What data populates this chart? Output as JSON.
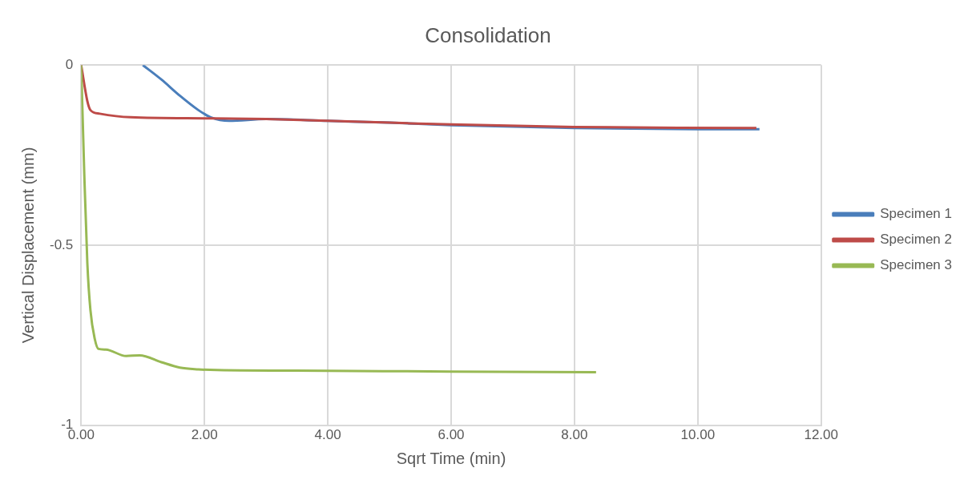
{
  "chart_data": {
    "type": "line",
    "title": "Consolidation",
    "xlabel": "Sqrt Time (min)",
    "ylabel": "Vertical Displacement (mm)",
    "xlim": [
      0,
      12
    ],
    "xticks": [
      {
        "value": 0,
        "label": "0.00"
      },
      {
        "value": 2,
        "label": "2.00"
      },
      {
        "value": 4,
        "label": "4.00"
      },
      {
        "value": 6,
        "label": "6.00"
      },
      {
        "value": 8,
        "label": "8.00"
      },
      {
        "value": 10,
        "label": "10.00"
      },
      {
        "value": 12,
        "label": "12.00"
      }
    ],
    "ylim": [
      -1,
      0
    ],
    "yticks": [
      -1,
      -0.5,
      0
    ],
    "grid": true,
    "legend": "right",
    "marker": "none",
    "line_style": "solid",
    "series": [
      {
        "name": "Specimen 1",
        "color": "#4a7ebb",
        "x": [
          1.0,
          1.3,
          1.6,
          1.9,
          2.1,
          2.4,
          3,
          4,
          5,
          6,
          8,
          10,
          11
        ],
        "values": [
          0,
          -0.04,
          -0.085,
          -0.125,
          -0.145,
          -0.155,
          -0.15,
          -0.155,
          -0.16,
          -0.167,
          -0.175,
          -0.178,
          -0.178
        ]
      },
      {
        "name": "Specimen 2",
        "color": "#be4b48",
        "x": [
          0,
          0.1,
          0.15,
          0.3,
          0.8,
          2,
          3,
          4,
          5,
          6,
          8,
          10.95
        ],
        "values": [
          0,
          -0.1,
          -0.125,
          -0.135,
          -0.145,
          -0.148,
          -0.15,
          -0.155,
          -0.16,
          -0.165,
          -0.172,
          -0.175
        ]
      },
      {
        "name": "Specimen 3",
        "color": "#98b954",
        "x": [
          0,
          0.05,
          0.1,
          0.15,
          0.22,
          0.28,
          0.4,
          0.73,
          0.95,
          1.3,
          1.6,
          1.9,
          2.2,
          4,
          6,
          8.35
        ],
        "values": [
          0,
          -0.3,
          -0.55,
          -0.68,
          -0.76,
          -0.788,
          -0.79,
          -0.808,
          -0.806,
          -0.825,
          -0.84,
          -0.845,
          -0.847,
          -0.849,
          -0.851,
          -0.853
        ]
      }
    ]
  }
}
